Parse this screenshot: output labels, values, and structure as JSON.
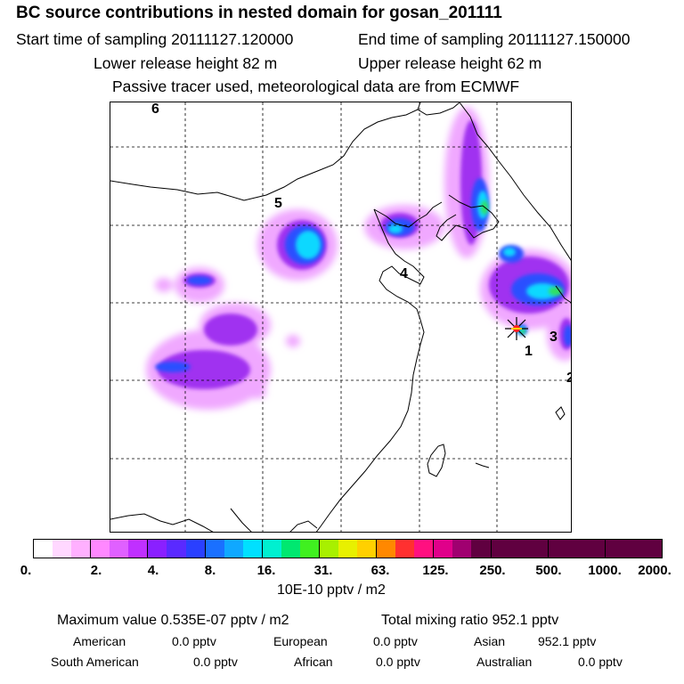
{
  "title": "BC  source contributions in nested domain for gosan_201111",
  "header": {
    "start": "Start time of sampling 20111127.120000",
    "end": "End time of sampling 20111127.150000",
    "lower": "Lower release height   82 m",
    "upper": "Upper release height   62 m",
    "tracer": "Passive tracer used, meteorological data are from ECMWF"
  },
  "map": {
    "cluster_labels": [
      "6",
      "5",
      "4",
      "3",
      "2",
      "1"
    ],
    "receptor_marker": "star-marker"
  },
  "colorbar": {
    "colors": [
      "#ffffff",
      "#ffd8ff",
      "#ffb0ff",
      "#ff88ff",
      "#e060ff",
      "#c030ff",
      "#8a20ff",
      "#5a2aff",
      "#2a40ff",
      "#1a70ff",
      "#10a8ff",
      "#00e0ff",
      "#00f0d0",
      "#00e870",
      "#40f020",
      "#a8f000",
      "#e8f000",
      "#ffd000",
      "#ff8800",
      "#ff3030",
      "#ff1080",
      "#e0008a",
      "#a00070",
      "#600040"
    ],
    "tick_labels": [
      "0.",
      "2.",
      "4.",
      "8.",
      "16.",
      "31.",
      "63.",
      "125.",
      "250.",
      "500.",
      "1000.",
      "2000."
    ],
    "units": "10E-10 pptv / m2"
  },
  "stats": {
    "maximum": "Maximum value  0.535E-07 pptv / m2",
    "total": "Total mixing ratio     952.1 pptv",
    "regions": [
      {
        "name": "American",
        "value": "0.0 pptv"
      },
      {
        "name": "European",
        "value": "0.0 pptv"
      },
      {
        "name": "Asian",
        "value": "952.1 pptv"
      },
      {
        "name": "South American",
        "value": "0.0 pptv"
      },
      {
        "name": "African",
        "value": "0.0 pptv"
      },
      {
        "name": "Australian",
        "value": "0.0 pptv"
      }
    ]
  }
}
